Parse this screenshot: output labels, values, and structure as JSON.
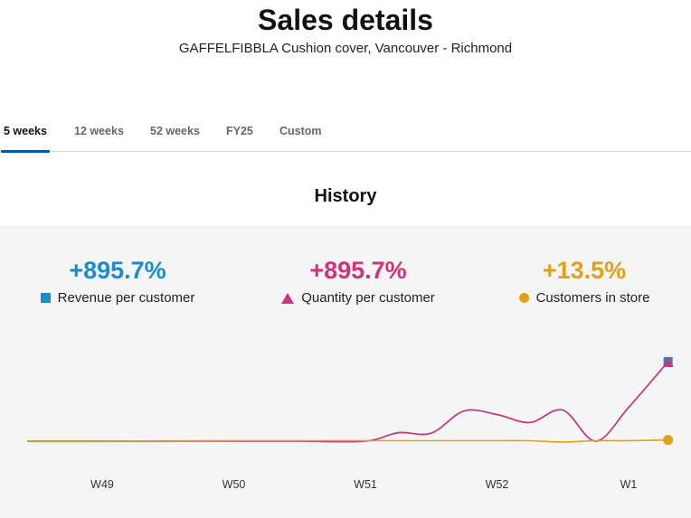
{
  "header": {
    "title": "Sales details",
    "subtitle": "GAFFELFIBBLA Cushion cover, Vancouver - Richmond"
  },
  "tabs": [
    {
      "label": "5 weeks",
      "active": true
    },
    {
      "label": "12 weeks",
      "active": false
    },
    {
      "label": "52 weeks",
      "active": false
    },
    {
      "label": "FY25",
      "active": false
    },
    {
      "label": "Custom",
      "active": false
    }
  ],
  "section_title": "History",
  "metrics": [
    {
      "value": "+895.7%",
      "label": "Revenue per customer",
      "color": "#1a8ccc",
      "marker": "square-icon"
    },
    {
      "value": "+895.7%",
      "label": "Quantity per customer",
      "color": "#d0337a",
      "marker": "triangle-icon"
    },
    {
      "value": "+13.5%",
      "label": "Customers in store",
      "color": "#e0a214",
      "marker": "circle-icon"
    }
  ],
  "chart_data": {
    "type": "line",
    "x_ticks": [
      "W49",
      "W50",
      "W51",
      "W52",
      "W1"
    ],
    "x": [
      0,
      0.5,
      1,
      1.5,
      2,
      2.25,
      2.5,
      2.75,
      3,
      3.25,
      3.5,
      3.75,
      4,
      4.3
    ],
    "ylim": [
      0,
      1000
    ],
    "series": [
      {
        "name": "Revenue per customer",
        "color": "#1a8ccc",
        "values": [
          0,
          0,
          0,
          0,
          0,
          95,
          90,
          340,
          300,
          210,
          350,
          0,
          380,
          895.7
        ]
      },
      {
        "name": "Quantity per customer",
        "color": "#d0337a",
        "values": [
          0,
          0,
          0,
          0,
          0,
          95,
          90,
          340,
          300,
          210,
          350,
          0,
          380,
          895.7
        ]
      },
      {
        "name": "Customers in store",
        "color": "#e0a214",
        "values": [
          0,
          3,
          5,
          5,
          5,
          5,
          5,
          5,
          5,
          5,
          -10,
          5,
          5,
          13.5
        ]
      }
    ]
  }
}
